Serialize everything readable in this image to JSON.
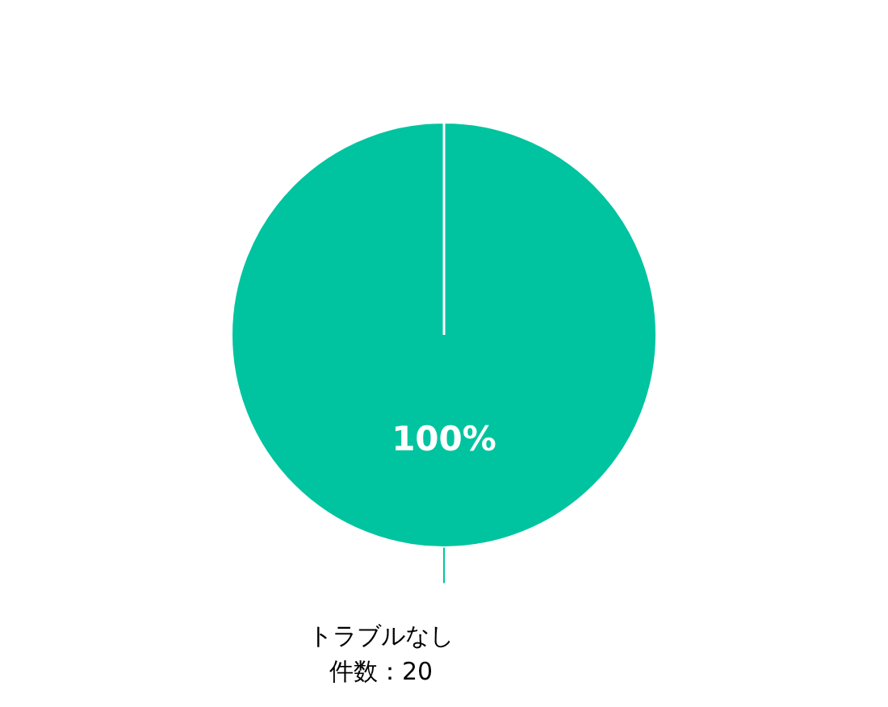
{
  "chart_data": {
    "type": "pie",
    "categories": [
      "トラブルなし"
    ],
    "values": [
      100
    ],
    "colors": [
      "#00c49f"
    ],
    "value_labels": [
      "100%"
    ],
    "annotations": [
      "件数：20"
    ],
    "legend": false
  }
}
